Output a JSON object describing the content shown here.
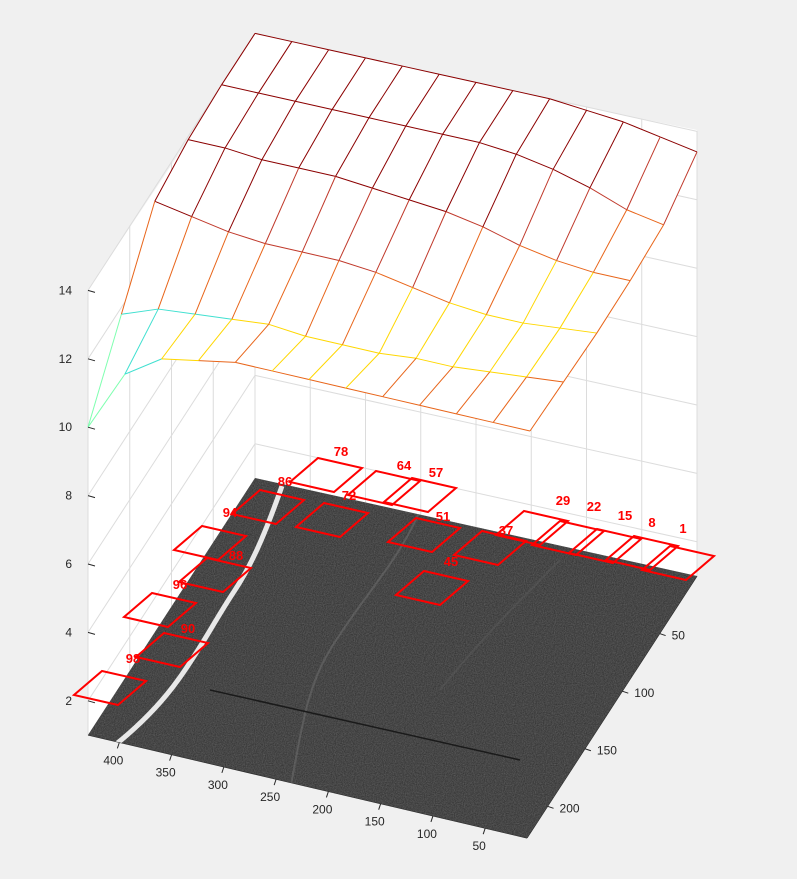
{
  "chart_data": {
    "type": "surface",
    "title": "",
    "xlabel": "",
    "ylabel": "",
    "zlabel": "",
    "z_ticks": [
      "2",
      "4",
      "6",
      "8",
      "10",
      "12",
      "14"
    ],
    "x_ticks": [
      "400",
      "350",
      "300",
      "250",
      "200",
      "150",
      "100",
      "50"
    ],
    "y_ticks": [
      "50",
      "100",
      "150",
      "200"
    ],
    "zlim": [
      1,
      14
    ],
    "grid": true,
    "colormap": "jet-like (edges: dark red top, orange/yellow/cyan in dip)",
    "surface_rows": [
      [
        14,
        14,
        14,
        14,
        14,
        14,
        14,
        14,
        14,
        13.9,
        13.8,
        13.6,
        13.4
      ],
      [
        14,
        14,
        14,
        14,
        14,
        14,
        14,
        14,
        13.9,
        13.7,
        13.4,
        13.0,
        12.8
      ],
      [
        13.9,
        13.9,
        13.8,
        13.8,
        13.8,
        13.7,
        13.6,
        13.5,
        13.3,
        13.0,
        12.8,
        12.7,
        12.7
      ],
      [
        13.6,
        13.4,
        13.2,
        13.1,
        13.1,
        13.1,
        13.0,
        12.8,
        12.6,
        12.5,
        12.5,
        12.6,
        12.7
      ],
      [
        11.8,
        12.2,
        12.3,
        12.4,
        12.5,
        12.4,
        12.4,
        12.4,
        12.5,
        12.5,
        12.6,
        12.7,
        12.8
      ],
      [
        10.0,
        11.8,
        12.5,
        12.7,
        12.9,
        12.9,
        12.9,
        12.9,
        12.9,
        12.9,
        12.9,
        12.9,
        12.9
      ]
    ],
    "patch_labels": [
      "1",
      "8",
      "15",
      "22",
      "29",
      "37",
      "45",
      "51",
      "57",
      "64",
      "72",
      "78",
      "86",
      "94",
      "88",
      "96",
      "90",
      "98"
    ],
    "image_base": "grayscale textured image with bright curved line"
  }
}
